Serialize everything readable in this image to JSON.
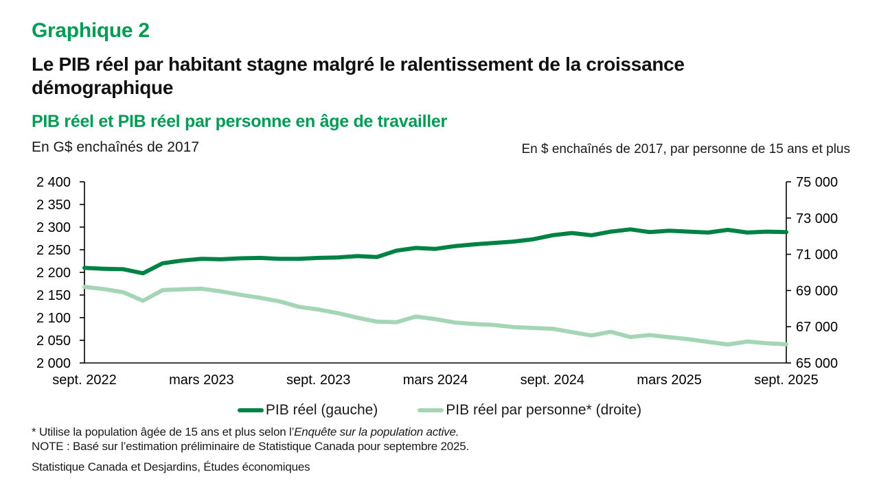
{
  "header": {
    "kicker": "Graphique 2",
    "title_lines": [
      "Le PIB réel par habitant stagne malgré le ralentissement de la croissance",
      "démographique"
    ],
    "subtitle": "PIB réel et PIB réel par personne en âge de travailler",
    "unit_left": "En G$ enchaînés de 2017",
    "unit_right": "En $ enchaînés de 2017, par personne de 15 ans et plus"
  },
  "colors": {
    "heading_green": "#009B54",
    "axis_black": "#000000",
    "line_dark_green": "#008244",
    "line_light_green": "#A4D6B6"
  },
  "chart_data": {
    "type": "line",
    "grid": "off",
    "legend_position": "bottom-center",
    "x_frequency": "monthly",
    "x_tick_labels": [
      "sept. 2022",
      "mars 2023",
      "sept. 2023",
      "mars 2024",
      "sept. 2024",
      "mars 2025",
      "sept. 2025"
    ],
    "x_tick_positions": [
      0,
      6,
      12,
      18,
      24,
      30,
      36
    ],
    "left_axis": {
      "title": "En G$ enchaînés de 2017",
      "min": 2000,
      "max": 2400,
      "step": 50,
      "ticks": [
        2000,
        2050,
        2100,
        2150,
        2200,
        2250,
        2300,
        2350,
        2400
      ],
      "tick_labels": [
        "2 000",
        "2 050",
        "2 100",
        "2 150",
        "2 200",
        "2 250",
        "2 300",
        "2 350",
        "2 400"
      ]
    },
    "right_axis": {
      "title": "En $ enchaînés de 2017, par personne de 15 ans et plus",
      "min": 65000,
      "max": 75000,
      "step": 2000,
      "ticks": [
        65000,
        67000,
        69000,
        71000,
        73000,
        75000
      ],
      "tick_labels": [
        "65 000",
        "67 000",
        "69 000",
        "71 000",
        "73 000",
        "75 000"
      ]
    },
    "series": [
      {
        "name": "PIB réel (gauche)",
        "axis": "left",
        "color": "#008244",
        "values": [
          2210,
          2208,
          2207,
          2198,
          2220,
          2226,
          2230,
          2229,
          2231,
          2232,
          2230,
          2230,
          2232,
          2233,
          2236,
          2234,
          2248,
          2254,
          2252,
          2258,
          2262,
          2265,
          2268,
          2273,
          2282,
          2287,
          2282,
          2290,
          2295,
          2289,
          2292,
          2290,
          2288,
          2294,
          2288,
          2290,
          2289
        ]
      },
      {
        "name": "PIB réel par personne* (droite)",
        "axis": "right",
        "color": "#A4D6B6",
        "values": [
          69200,
          69080,
          68900,
          68430,
          69020,
          69070,
          69100,
          68950,
          68760,
          68600,
          68400,
          68100,
          67950,
          67750,
          67500,
          67280,
          67250,
          67560,
          67420,
          67230,
          67150,
          67100,
          66980,
          66930,
          66890,
          66700,
          66520,
          66720,
          66430,
          66540,
          66420,
          66310,
          66160,
          66020,
          66180,
          66090,
          66030
        ]
      }
    ]
  },
  "footnotes": {
    "line1_normal": "* Utilise la population âgée de 15 ans et plus selon l’",
    "line1_italic": "Enquête sur la population active.",
    "line2": "NOTE : Basé sur l’estimation préliminaire de Statistique Canada pour septembre 2025.",
    "source": "Statistique Canada et Desjardins, Études économiques"
  }
}
